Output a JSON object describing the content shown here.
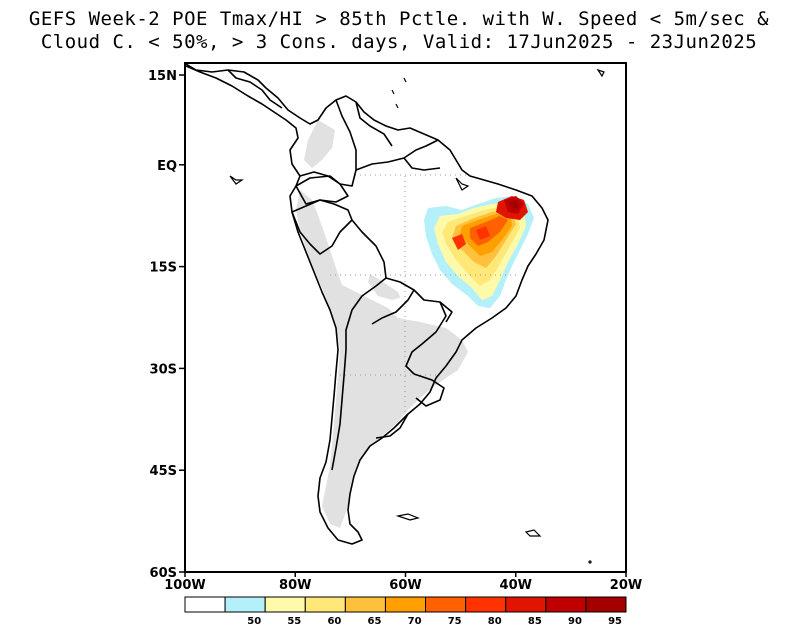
{
  "title": {
    "line1": "GEFS Week-2 POE Tmax/HI > 85th Pctle. with W. Speed < 5m/sec &",
    "line2": "Cloud C. < 50%, > 3 Cons. days, Valid: 17Jun2025 - 23Jun2025"
  },
  "map": {
    "lat_ticks": [
      {
        "label": "15N",
        "lat": 15
      },
      {
        "label": "EQ",
        "lat": 0
      },
      {
        "label": "15S",
        "lat": -15
      },
      {
        "label": "30S",
        "lat": -30
      },
      {
        "label": "45S",
        "lat": -45
      },
      {
        "label": "60S",
        "lat": -60
      }
    ],
    "lon_ticks": [
      {
        "label": "100W",
        "lon": -100
      },
      {
        "label": "80W",
        "lon": -80
      },
      {
        "label": "60W",
        "lon": -60
      },
      {
        "label": "40W",
        "lon": -40
      },
      {
        "label": "20W",
        "lon": -20
      }
    ],
    "extent": {
      "lon_min": -100,
      "lon_max": -20,
      "lat_min": -60,
      "lat_max": 15
    },
    "colors": {
      "land_gray": "#e1e1e1",
      "coast": "#000000"
    }
  },
  "colorbar": {
    "bins": [
      {
        "color": "#ffffff"
      },
      {
        "color": "#b4f0fa",
        "label": "50"
      },
      {
        "color": "#fffaaa",
        "label": "55"
      },
      {
        "color": "#ffe878",
        "label": "60"
      },
      {
        "color": "#ffc03c",
        "label": "65"
      },
      {
        "color": "#ffa000",
        "label": "70"
      },
      {
        "color": "#ff6000",
        "label": "75"
      },
      {
        "color": "#ff3200",
        "label": "80"
      },
      {
        "color": "#e11400",
        "label": "85"
      },
      {
        "color": "#c00000",
        "label": "90"
      },
      {
        "color": "#a50000",
        "label": "95"
      }
    ]
  }
}
